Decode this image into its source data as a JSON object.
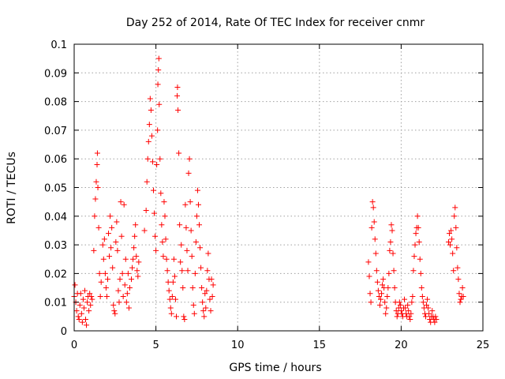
{
  "chart_data": {
    "type": "scatter",
    "title": "Day 252 of 2014, Rate Of TEC Index for receiver cnmr",
    "xlabel": "GPS time / hours",
    "ylabel": "ROTI / TECUs",
    "xlim": [
      0,
      25
    ],
    "ylim": [
      0,
      0.1
    ],
    "x_ticks": [
      0,
      5,
      10,
      15,
      20,
      25
    ],
    "x_tick_labels": [
      "0",
      "5",
      "10",
      "15",
      "20",
      "25"
    ],
    "y_ticks": [
      0,
      0.01,
      0.02,
      0.03,
      0.04,
      0.05,
      0.06,
      0.07,
      0.08,
      0.09,
      0.1
    ],
    "y_tick_labels": [
      "0",
      "0.01",
      "0.02",
      "0.03",
      "0.04",
      "0.05",
      "0.06",
      "0.07",
      "0.08",
      "0.09",
      "0.1"
    ],
    "grid": true,
    "marker": "+",
    "marker_color": "#ff0000",
    "series": [
      {
        "name": "ROTI",
        "points": [
          [
            0.0,
            0.012
          ],
          [
            0.05,
            0.016
          ],
          [
            0.1,
            0.01
          ],
          [
            0.15,
            0.007
          ],
          [
            0.2,
            0.013
          ],
          [
            0.25,
            0.005
          ],
          [
            0.3,
            0.004
          ],
          [
            0.35,
            0.009
          ],
          [
            0.4,
            0.013
          ],
          [
            0.45,
            0.006
          ],
          [
            0.5,
            0.003
          ],
          [
            0.55,
            0.011
          ],
          [
            0.6,
            0.008
          ],
          [
            0.65,
            0.014
          ],
          [
            0.7,
            0.004
          ],
          [
            0.75,
            0.002
          ],
          [
            0.8,
            0.01
          ],
          [
            0.85,
            0.012
          ],
          [
            0.9,
            0.007
          ],
          [
            0.95,
            0.013
          ],
          [
            1.0,
            0.009
          ],
          [
            1.05,
            0.012
          ],
          [
            1.1,
            0.011
          ],
          [
            1.2,
            0.028
          ],
          [
            1.25,
            0.04
          ],
          [
            1.3,
            0.046
          ],
          [
            1.35,
            0.052
          ],
          [
            1.4,
            0.058
          ],
          [
            1.42,
            0.062
          ],
          [
            1.45,
            0.05
          ],
          [
            1.5,
            0.036
          ],
          [
            1.55,
            0.02
          ],
          [
            1.6,
            0.012
          ],
          [
            1.65,
            0.017
          ],
          [
            1.75,
            0.03
          ],
          [
            1.8,
            0.025
          ],
          [
            1.85,
            0.032
          ],
          [
            1.9,
            0.02
          ],
          [
            1.95,
            0.015
          ],
          [
            2.0,
            0.012
          ],
          [
            2.05,
            0.018
          ],
          [
            2.1,
            0.034
          ],
          [
            2.15,
            0.026
          ],
          [
            2.2,
            0.04
          ],
          [
            2.25,
            0.029
          ],
          [
            2.3,
            0.036
          ],
          [
            2.35,
            0.022
          ],
          [
            2.4,
            0.009
          ],
          [
            2.45,
            0.007
          ],
          [
            2.5,
            0.006
          ],
          [
            2.55,
            0.031
          ],
          [
            2.6,
            0.038
          ],
          [
            2.65,
            0.028
          ],
          [
            2.7,
            0.014
          ],
          [
            2.75,
            0.01
          ],
          [
            2.8,
            0.018
          ],
          [
            2.85,
            0.045
          ],
          [
            2.9,
            0.033
          ],
          [
            2.95,
            0.02
          ],
          [
            3.0,
            0.012
          ],
          [
            3.05,
            0.044
          ],
          [
            3.1,
            0.016
          ],
          [
            3.15,
            0.025
          ],
          [
            3.2,
            0.01
          ],
          [
            3.25,
            0.013
          ],
          [
            3.3,
            0.02
          ],
          [
            3.35,
            0.008
          ],
          [
            3.4,
            0.015
          ],
          [
            3.5,
            0.018
          ],
          [
            3.55,
            0.022
          ],
          [
            3.6,
            0.025
          ],
          [
            3.65,
            0.029
          ],
          [
            3.7,
            0.033
          ],
          [
            3.75,
            0.037
          ],
          [
            3.8,
            0.026
          ],
          [
            3.85,
            0.021
          ],
          [
            3.9,
            0.019
          ],
          [
            3.95,
            0.024
          ],
          [
            4.3,
            0.035
          ],
          [
            4.4,
            0.042
          ],
          [
            4.45,
            0.052
          ],
          [
            4.5,
            0.06
          ],
          [
            4.55,
            0.066
          ],
          [
            4.6,
            0.072
          ],
          [
            4.65,
            0.081
          ],
          [
            4.7,
            0.077
          ],
          [
            4.75,
            0.068
          ],
          [
            4.8,
            0.059
          ],
          [
            4.85,
            0.049
          ],
          [
            4.9,
            0.041
          ],
          [
            4.95,
            0.033
          ],
          [
            5.0,
            0.028
          ],
          [
            5.05,
            0.058
          ],
          [
            5.1,
            0.07
          ],
          [
            5.12,
            0.086
          ],
          [
            5.15,
            0.091
          ],
          [
            5.18,
            0.095
          ],
          [
            5.2,
            0.079
          ],
          [
            5.25,
            0.06
          ],
          [
            5.3,
            0.048
          ],
          [
            5.35,
            0.037
          ],
          [
            5.4,
            0.031
          ],
          [
            5.45,
            0.026
          ],
          [
            5.5,
            0.045
          ],
          [
            5.55,
            0.04
          ],
          [
            5.6,
            0.032
          ],
          [
            5.65,
            0.025
          ],
          [
            5.7,
            0.021
          ],
          [
            5.75,
            0.017
          ],
          [
            5.8,
            0.014
          ],
          [
            5.85,
            0.011
          ],
          [
            5.9,
            0.008
          ],
          [
            5.95,
            0.006
          ],
          [
            6.0,
            0.012
          ],
          [
            6.05,
            0.017
          ],
          [
            6.1,
            0.025
          ],
          [
            6.15,
            0.019
          ],
          [
            6.2,
            0.011
          ],
          [
            6.25,
            0.005
          ],
          [
            6.3,
            0.082
          ],
          [
            6.32,
            0.085
          ],
          [
            6.35,
            0.077
          ],
          [
            6.4,
            0.062
          ],
          [
            6.45,
            0.037
          ],
          [
            6.5,
            0.024
          ],
          [
            6.55,
            0.03
          ],
          [
            6.6,
            0.021
          ],
          [
            6.65,
            0.015
          ],
          [
            6.7,
            0.005
          ],
          [
            6.75,
            0.004
          ],
          [
            6.8,
            0.044
          ],
          [
            6.85,
            0.036
          ],
          [
            6.9,
            0.028
          ],
          [
            6.95,
            0.021
          ],
          [
            7.0,
            0.055
          ],
          [
            7.05,
            0.06
          ],
          [
            7.1,
            0.045
          ],
          [
            7.15,
            0.035
          ],
          [
            7.2,
            0.026
          ],
          [
            7.25,
            0.015
          ],
          [
            7.3,
            0.009
          ],
          [
            7.35,
            0.006
          ],
          [
            7.4,
            0.02
          ],
          [
            7.45,
            0.031
          ],
          [
            7.5,
            0.04
          ],
          [
            7.55,
            0.049
          ],
          [
            7.6,
            0.044
          ],
          [
            7.65,
            0.037
          ],
          [
            7.7,
            0.029
          ],
          [
            7.75,
            0.022
          ],
          [
            7.8,
            0.015
          ],
          [
            7.85,
            0.01
          ],
          [
            7.9,
            0.007
          ],
          [
            7.95,
            0.005
          ],
          [
            8.0,
            0.013
          ],
          [
            8.05,
            0.008
          ],
          [
            8.1,
            0.014
          ],
          [
            8.15,
            0.021
          ],
          [
            8.2,
            0.027
          ],
          [
            8.25,
            0.018
          ],
          [
            8.3,
            0.011
          ],
          [
            8.35,
            0.007
          ],
          [
            8.4,
            0.018
          ],
          [
            8.45,
            0.012
          ],
          [
            8.5,
            0.016
          ],
          [
            18.0,
            0.024
          ],
          [
            18.05,
            0.019
          ],
          [
            18.1,
            0.013
          ],
          [
            18.15,
            0.01
          ],
          [
            18.2,
            0.036
          ],
          [
            18.25,
            0.045
          ],
          [
            18.3,
            0.043
          ],
          [
            18.35,
            0.038
          ],
          [
            18.4,
            0.032
          ],
          [
            18.45,
            0.027
          ],
          [
            18.5,
            0.021
          ],
          [
            18.55,
            0.017
          ],
          [
            18.6,
            0.014
          ],
          [
            18.65,
            0.012
          ],
          [
            18.7,
            0.009
          ],
          [
            18.75,
            0.011
          ],
          [
            18.8,
            0.013
          ],
          [
            18.85,
            0.016
          ],
          [
            18.9,
            0.018
          ],
          [
            18.95,
            0.015
          ],
          [
            19.0,
            0.01
          ],
          [
            19.05,
            0.006
          ],
          [
            19.1,
            0.008
          ],
          [
            19.15,
            0.012
          ],
          [
            19.2,
            0.015
          ],
          [
            19.25,
            0.02
          ],
          [
            19.3,
            0.028
          ],
          [
            19.35,
            0.031
          ],
          [
            19.4,
            0.037
          ],
          [
            19.45,
            0.035
          ],
          [
            19.5,
            0.027
          ],
          [
            19.55,
            0.021
          ],
          [
            19.6,
            0.015
          ],
          [
            19.65,
            0.01
          ],
          [
            19.7,
            0.007
          ],
          [
            19.75,
            0.005
          ],
          [
            19.8,
            0.006
          ],
          [
            19.85,
            0.008
          ],
          [
            19.9,
            0.01
          ],
          [
            19.95,
            0.009
          ],
          [
            20.0,
            0.007
          ],
          [
            20.05,
            0.006
          ],
          [
            20.1,
            0.005
          ],
          [
            20.15,
            0.008
          ],
          [
            20.2,
            0.011
          ],
          [
            20.25,
            0.008
          ],
          [
            20.3,
            0.006
          ],
          [
            20.35,
            0.005
          ],
          [
            20.4,
            0.009
          ],
          [
            20.45,
            0.007
          ],
          [
            20.5,
            0.005
          ],
          [
            20.55,
            0.004
          ],
          [
            20.6,
            0.006
          ],
          [
            20.65,
            0.01
          ],
          [
            20.7,
            0.012
          ],
          [
            20.75,
            0.021
          ],
          [
            20.8,
            0.026
          ],
          [
            20.85,
            0.03
          ],
          [
            20.9,
            0.034
          ],
          [
            20.95,
            0.036
          ],
          [
            21.0,
            0.04
          ],
          [
            21.05,
            0.036
          ],
          [
            21.1,
            0.031
          ],
          [
            21.15,
            0.025
          ],
          [
            21.2,
            0.02
          ],
          [
            21.25,
            0.015
          ],
          [
            21.3,
            0.012
          ],
          [
            21.35,
            0.01
          ],
          [
            21.4,
            0.008
          ],
          [
            21.45,
            0.006
          ],
          [
            21.5,
            0.005
          ],
          [
            21.55,
            0.009
          ],
          [
            21.6,
            0.011
          ],
          [
            21.65,
            0.008
          ],
          [
            21.7,
            0.006
          ],
          [
            21.75,
            0.004
          ],
          [
            21.8,
            0.003
          ],
          [
            21.85,
            0.005
          ],
          [
            21.9,
            0.007
          ],
          [
            21.95,
            0.005
          ],
          [
            22.0,
            0.004
          ],
          [
            22.05,
            0.003
          ],
          [
            22.1,
            0.005
          ],
          [
            22.15,
            0.004
          ],
          [
            22.9,
            0.031
          ],
          [
            22.95,
            0.034
          ],
          [
            23.0,
            0.03
          ],
          [
            23.05,
            0.035
          ],
          [
            23.1,
            0.032
          ],
          [
            23.15,
            0.027
          ],
          [
            23.2,
            0.021
          ],
          [
            23.25,
            0.04
          ],
          [
            23.3,
            0.043
          ],
          [
            23.35,
            0.036
          ],
          [
            23.4,
            0.029
          ],
          [
            23.45,
            0.022
          ],
          [
            23.5,
            0.018
          ],
          [
            23.55,
            0.013
          ],
          [
            23.6,
            0.01
          ],
          [
            23.65,
            0.011
          ],
          [
            23.7,
            0.012
          ],
          [
            23.75,
            0.015
          ],
          [
            23.8,
            0.012
          ]
        ]
      }
    ]
  }
}
